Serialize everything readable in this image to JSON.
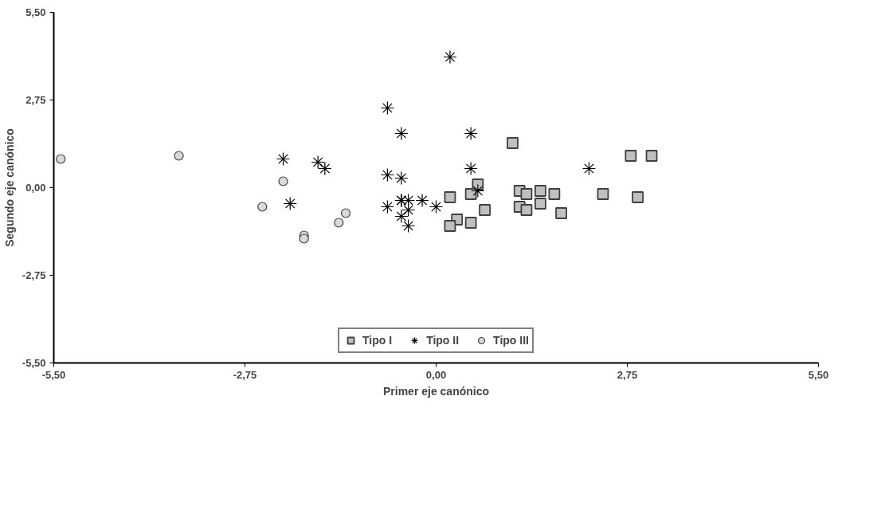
{
  "chart_data": {
    "type": "scatter",
    "xlabel": "Primer eje canónico",
    "ylabel": "Segundo eje canónico",
    "xlim": [
      -5.5,
      5.5
    ],
    "ylim": [
      -5.5,
      5.5
    ],
    "xticks": [
      {
        "value": -5.5,
        "label": "-5,50"
      },
      {
        "value": -2.75,
        "label": "-2,75"
      },
      {
        "value": 0,
        "label": "0,00"
      },
      {
        "value": 2.75,
        "label": "2,75"
      },
      {
        "value": 5.5,
        "label": "5,50"
      }
    ],
    "yticks": [
      {
        "value": -5.5,
        "label": "-5,50"
      },
      {
        "value": -2.75,
        "label": "-2,75"
      },
      {
        "value": 0,
        "label": "0,00"
      },
      {
        "value": 2.75,
        "label": "2,75"
      },
      {
        "value": 5.5,
        "label": "5,50"
      }
    ],
    "grid": false,
    "legend": "bottom",
    "series": [
      {
        "name": "Tipo I",
        "color": "#c0c0c0",
        "marker": "square",
        "x": [
          1.1,
          2.8,
          3.1,
          0.2,
          0.6,
          0.5,
          0.7,
          0.3,
          0.2,
          0.5,
          1.2,
          1.3,
          1.5,
          1.7,
          1.2,
          1.3,
          1.5,
          1.8,
          2.4,
          2.9
        ],
        "values": [
          1.4,
          1.0,
          1.0,
          -0.3,
          0.1,
          -0.2,
          -0.7,
          -1.0,
          -1.2,
          -1.1,
          -0.1,
          -0.2,
          -0.1,
          -0.2,
          -0.6,
          -0.7,
          -0.5,
          -0.8,
          -0.2,
          -0.3
        ]
      },
      {
        "name": "Tipo II",
        "color": "#000000",
        "marker": "cross",
        "x": [
          0.2,
          -0.7,
          -0.5,
          0.5,
          -2.2,
          -1.7,
          -1.6,
          -0.7,
          -0.5,
          0.5,
          2.2,
          -2.1,
          -0.7,
          -0.5,
          -0.5,
          -0.4,
          -0.2,
          0.0,
          -0.5,
          -0.4,
          -0.4,
          0.6
        ],
        "values": [
          4.1,
          2.5,
          1.7,
          1.7,
          0.9,
          0.8,
          0.6,
          0.4,
          0.3,
          0.6,
          0.6,
          -0.5,
          -0.6,
          -0.4,
          -0.4,
          -0.4,
          -0.4,
          -0.6,
          -0.9,
          -0.7,
          -1.2,
          -0.1
        ]
      },
      {
        "name": "Tipo III",
        "color": "#d9d9d9",
        "marker": "circle",
        "x": [
          -5.4,
          -3.7,
          -2.5,
          -2.2,
          -1.9,
          -1.9,
          -1.4,
          -1.3
        ],
        "values": [
          0.9,
          1.0,
          -0.6,
          0.2,
          -1.5,
          -1.6,
          -1.1,
          -0.8
        ]
      }
    ]
  }
}
